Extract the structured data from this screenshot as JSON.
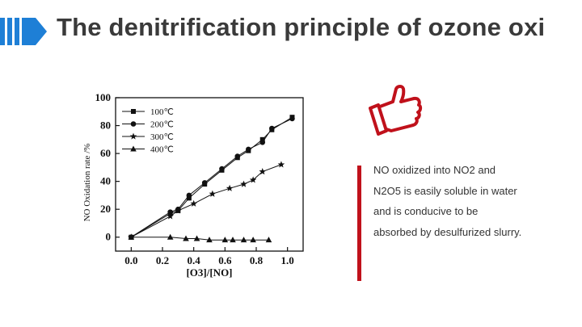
{
  "slide": {
    "title": "The denitrification principle of ozone oxi"
  },
  "icons": {
    "title_marker": "blue-chevron-icon",
    "thumb": "thumbs-up-icon"
  },
  "note": {
    "lines": [
      "NO oxidized into NO2 and",
      "N2O5 is easily soluble in water",
      "and is conducive to be",
      "absorbed by desulfurized slurry."
    ]
  },
  "colors": {
    "title_marker": "#1e7fd6",
    "accent_red": "#c0111b",
    "text": "#333333"
  },
  "chart_data": {
    "type": "line",
    "xlabel": "[O3]/[NO]",
    "ylabel": "NO Oxidation rate /%",
    "xlim": [
      -0.1,
      1.1
    ],
    "ylim": [
      -10,
      100
    ],
    "x_ticks": [
      "0.0",
      "0.2",
      "0.4",
      "0.6",
      "0.8",
      "1.0"
    ],
    "y_ticks": [
      "0",
      "20",
      "40",
      "60",
      "80",
      "100"
    ],
    "legend_position": "top-left",
    "grid": false,
    "series": [
      {
        "name": "100℃",
        "marker": "square",
        "points": [
          [
            0.0,
            0
          ],
          [
            0.25,
            17
          ],
          [
            0.3,
            19
          ],
          [
            0.37,
            28
          ],
          [
            0.47,
            38
          ],
          [
            0.58,
            48
          ],
          [
            0.68,
            57
          ],
          [
            0.75,
            62
          ],
          [
            0.84,
            70
          ],
          [
            0.9,
            77
          ],
          [
            1.03,
            86
          ]
        ]
      },
      {
        "name": "200℃",
        "marker": "circle",
        "points": [
          [
            0.0,
            0
          ],
          [
            0.25,
            18
          ],
          [
            0.3,
            20
          ],
          [
            0.37,
            30
          ],
          [
            0.47,
            39
          ],
          [
            0.58,
            49
          ],
          [
            0.68,
            58
          ],
          [
            0.75,
            63
          ],
          [
            0.84,
            68
          ],
          [
            0.9,
            78
          ],
          [
            1.03,
            85
          ]
        ]
      },
      {
        "name": "300℃",
        "marker": "star",
        "points": [
          [
            0.0,
            0
          ],
          [
            0.25,
            15
          ],
          [
            0.3,
            19
          ],
          [
            0.4,
            24
          ],
          [
            0.52,
            31
          ],
          [
            0.63,
            35
          ],
          [
            0.72,
            38
          ],
          [
            0.78,
            41
          ],
          [
            0.84,
            47
          ],
          [
            0.96,
            52
          ]
        ]
      },
      {
        "name": "400℃",
        "marker": "triangle",
        "points": [
          [
            0.0,
            0
          ],
          [
            0.25,
            0
          ],
          [
            0.35,
            -1
          ],
          [
            0.42,
            -1
          ],
          [
            0.5,
            -2
          ],
          [
            0.6,
            -2
          ],
          [
            0.65,
            -2
          ],
          [
            0.72,
            -2
          ],
          [
            0.78,
            -2
          ],
          [
            0.88,
            -2
          ]
        ]
      }
    ]
  }
}
